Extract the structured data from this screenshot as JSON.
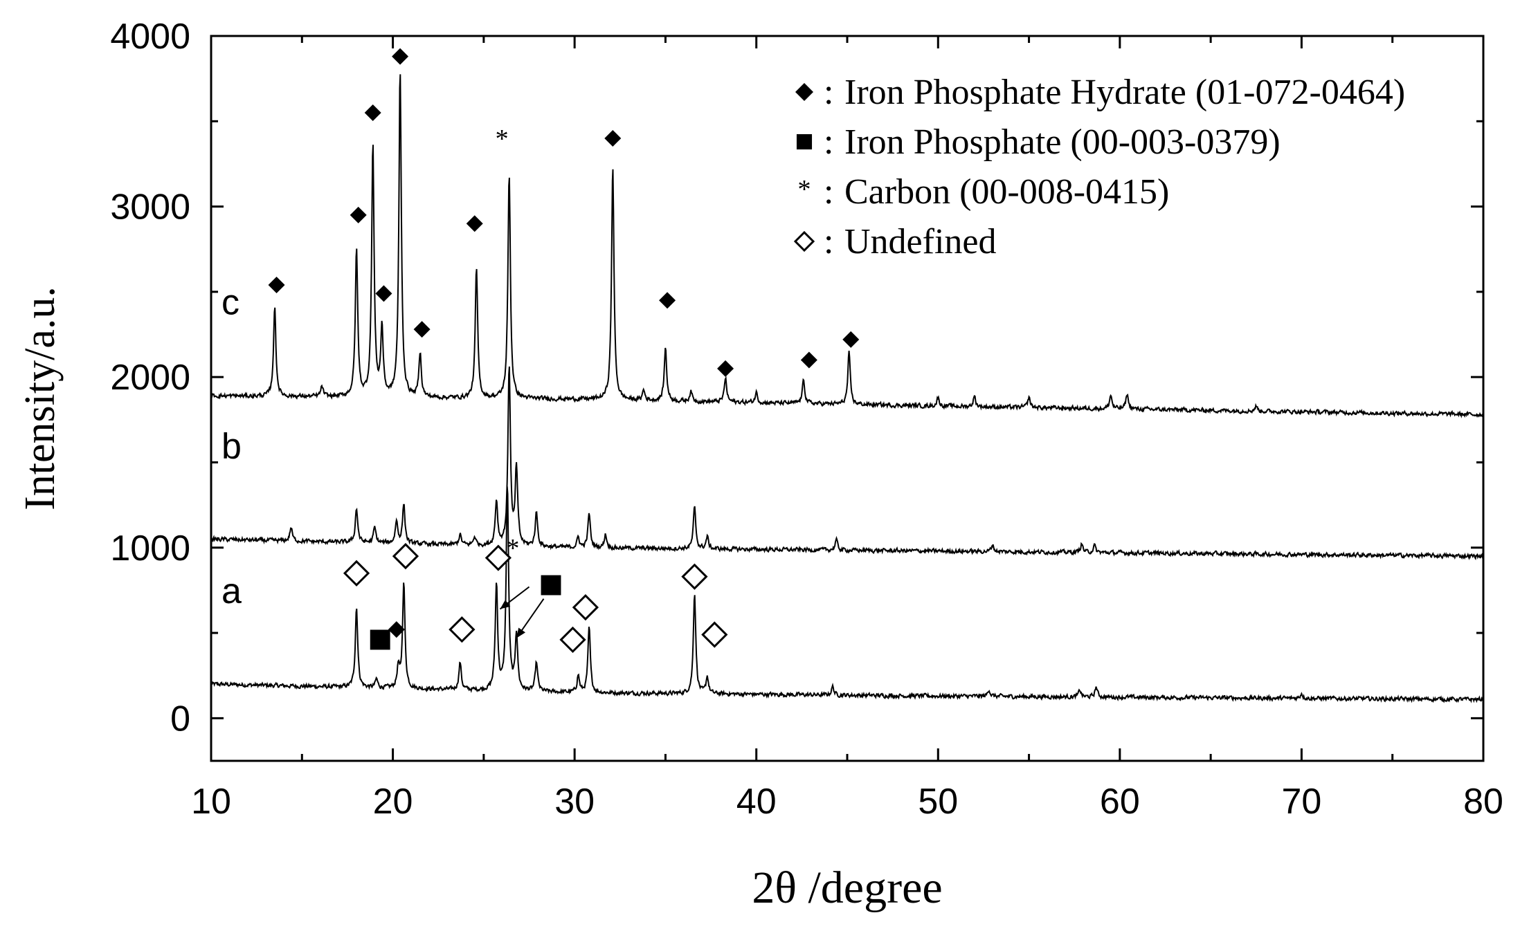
{
  "chart_data": {
    "type": "line",
    "xlabel": "2θ /degree",
    "ylabel": "Intensity/a.u.",
    "xlim": [
      10,
      80
    ],
    "ylim": [
      -250,
      4000
    ],
    "x_ticks": [
      10,
      20,
      30,
      40,
      50,
      60,
      70,
      80
    ],
    "y_ticks": [
      0,
      1000,
      2000,
      3000,
      4000
    ],
    "grid": false,
    "legend_position": "top-right",
    "legend": [
      {
        "marker": "filled-diamond",
        "sep": ":",
        "text": "Iron Phosphate Hydrate (01-072-0464)"
      },
      {
        "marker": "filled-square",
        "sep": ":",
        "text": "Iron Phosphate (00-003-0379)"
      },
      {
        "marker": "asterisk",
        "sep": ":",
        "text": "Carbon (00-008-0415)"
      },
      {
        "marker": "open-diamond",
        "sep": ":",
        "text": "Undefined"
      }
    ],
    "series": [
      {
        "name": "a",
        "baseline": [
          [
            10,
            200
          ],
          [
            30,
            150
          ],
          [
            50,
            130
          ],
          [
            80,
            110
          ]
        ],
        "peaks": [
          [
            18.0,
            470
          ],
          [
            19.1,
            50
          ],
          [
            20.3,
            120
          ],
          [
            20.6,
            620
          ],
          [
            23.7,
            160
          ],
          [
            25.7,
            620
          ],
          [
            26.3,
            1200
          ],
          [
            26.8,
            330
          ],
          [
            27.9,
            170
          ],
          [
            30.2,
            100
          ],
          [
            30.8,
            380
          ],
          [
            36.6,
            590
          ],
          [
            37.3,
            100
          ],
          [
            44.2,
            50
          ],
          [
            52.8,
            40
          ],
          [
            57.8,
            40
          ],
          [
            58.7,
            60
          ],
          [
            70.0,
            30
          ]
        ]
      },
      {
        "name": "b",
        "baseline": [
          [
            10,
            1050
          ],
          [
            30,
            1000
          ],
          [
            50,
            980
          ],
          [
            80,
            950
          ]
        ],
        "peaks": [
          [
            14.4,
            80
          ],
          [
            18.0,
            200
          ],
          [
            19.0,
            90
          ],
          [
            20.2,
            130
          ],
          [
            20.6,
            230
          ],
          [
            23.7,
            60
          ],
          [
            24.5,
            50
          ],
          [
            25.7,
            260
          ],
          [
            26.4,
            1050
          ],
          [
            26.8,
            450
          ],
          [
            27.9,
            200
          ],
          [
            30.2,
            60
          ],
          [
            30.8,
            200
          ],
          [
            31.7,
            80
          ],
          [
            36.6,
            240
          ],
          [
            37.3,
            70
          ],
          [
            44.4,
            60
          ],
          [
            53.0,
            40
          ],
          [
            57.9,
            50
          ],
          [
            58.6,
            40
          ]
        ]
      },
      {
        "name": "c",
        "baseline": [
          [
            10,
            1890
          ],
          [
            30,
            1870
          ],
          [
            50,
            1830
          ],
          [
            80,
            1780
          ]
        ],
        "peaks": [
          [
            13.5,
            520
          ],
          [
            16.1,
            60
          ],
          [
            18.0,
            860
          ],
          [
            18.9,
            1480
          ],
          [
            19.4,
            400
          ],
          [
            20.4,
            1910
          ],
          [
            21.5,
            260
          ],
          [
            24.6,
            760
          ],
          [
            26.4,
            1320
          ],
          [
            32.1,
            1370
          ],
          [
            33.8,
            60
          ],
          [
            35.0,
            310
          ],
          [
            36.4,
            60
          ],
          [
            38.3,
            140
          ],
          [
            40.0,
            60
          ],
          [
            42.6,
            140
          ],
          [
            45.1,
            300
          ],
          [
            50.0,
            50
          ],
          [
            52.0,
            60
          ],
          [
            55.0,
            60
          ],
          [
            59.5,
            80
          ],
          [
            60.4,
            90
          ],
          [
            67.5,
            30
          ]
        ]
      }
    ],
    "annotations": [
      {
        "symbol": "filled-diamond",
        "x": 13.6,
        "y": 2540
      },
      {
        "symbol": "filled-diamond",
        "x": 18.1,
        "y": 2950
      },
      {
        "symbol": "filled-diamond",
        "x": 18.9,
        "y": 3550
      },
      {
        "symbol": "filled-diamond",
        "x": 19.5,
        "y": 2490
      },
      {
        "symbol": "filled-diamond",
        "x": 20.4,
        "y": 3880
      },
      {
        "symbol": "filled-diamond",
        "x": 21.6,
        "y": 2280
      },
      {
        "symbol": "filled-diamond",
        "x": 24.5,
        "y": 2900
      },
      {
        "symbol": "asterisk",
        "x": 26.0,
        "y": 3400
      },
      {
        "symbol": "filled-diamond",
        "x": 32.1,
        "y": 3400
      },
      {
        "symbol": "filled-diamond",
        "x": 35.1,
        "y": 2450
      },
      {
        "symbol": "filled-diamond",
        "x": 38.3,
        "y": 2050
      },
      {
        "symbol": "filled-diamond",
        "x": 42.9,
        "y": 2100
      },
      {
        "symbol": "filled-diamond",
        "x": 45.2,
        "y": 2220
      },
      {
        "symbol": "asterisk",
        "x": 26.6,
        "y": 1000
      },
      {
        "symbol": "open-diamond",
        "x": 18.0,
        "y": 850
      },
      {
        "symbol": "open-diamond",
        "x": 20.7,
        "y": 950
      },
      {
        "symbol": "open-diamond",
        "x": 23.8,
        "y": 520
      },
      {
        "symbol": "open-diamond",
        "x": 25.8,
        "y": 940
      },
      {
        "symbol": "open-diamond",
        "x": 29.9,
        "y": 460
      },
      {
        "symbol": "open-diamond",
        "x": 30.6,
        "y": 650
      },
      {
        "symbol": "open-diamond",
        "x": 36.6,
        "y": 830
      },
      {
        "symbol": "open-diamond",
        "x": 37.7,
        "y": 490
      },
      {
        "symbol": "filled-diamond",
        "x": 20.2,
        "y": 520
      },
      {
        "symbol": "filled-square",
        "x": 19.3,
        "y": 460
      },
      {
        "symbol": "filled-square",
        "x": 28.7,
        "y": 780
      }
    ],
    "arrows": [
      {
        "from": [
          28.3,
          700
        ],
        "to": [
          26.8,
          470
        ]
      },
      {
        "from": [
          27.5,
          770
        ],
        "to": [
          25.9,
          640
        ]
      }
    ]
  }
}
